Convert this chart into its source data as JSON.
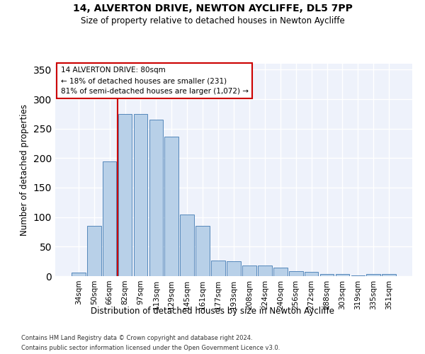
{
  "title1": "14, ALVERTON DRIVE, NEWTON AYCLIFFE, DL5 7PP",
  "title2": "Size of property relative to detached houses in Newton Aycliffe",
  "xlabel": "Distribution of detached houses by size in Newton Aycliffe",
  "ylabel": "Number of detached properties",
  "categories": [
    "34sqm",
    "50sqm",
    "66sqm",
    "82sqm",
    "97sqm",
    "113sqm",
    "129sqm",
    "145sqm",
    "161sqm",
    "177sqm",
    "193sqm",
    "208sqm",
    "224sqm",
    "240sqm",
    "256sqm",
    "272sqm",
    "288sqm",
    "303sqm",
    "319sqm",
    "335sqm",
    "351sqm"
  ],
  "values": [
    6,
    85,
    195,
    275,
    275,
    265,
    237,
    104,
    85,
    27,
    25,
    18,
    18,
    14,
    8,
    7,
    4,
    4,
    1,
    4,
    4
  ],
  "bar_color": "#b8d0e8",
  "bar_edge_color": "#5588bb",
  "vline_color": "#cc0000",
  "annotation_text": "14 ALVERTON DRIVE: 80sqm\n← 18% of detached houses are smaller (231)\n81% of semi-detached houses are larger (1,072) →",
  "annotation_box_color": "#ffffff",
  "annotation_box_edge": "#cc0000",
  "ylim": [
    0,
    360
  ],
  "yticks": [
    0,
    50,
    100,
    150,
    200,
    250,
    300,
    350
  ],
  "bg_color": "#eef2fb",
  "footer1": "Contains HM Land Registry data © Crown copyright and database right 2024.",
  "footer2": "Contains public sector information licensed under the Open Government Licence v3.0."
}
